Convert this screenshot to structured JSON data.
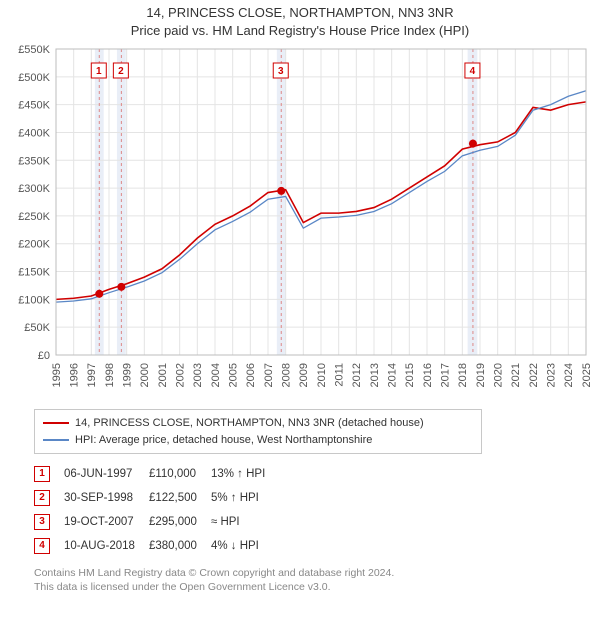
{
  "title_line1": "14, PRINCESS CLOSE, NORTHAMPTON, NN3 3NR",
  "title_line2": "Price paid vs. HM Land Registry's House Price Index (HPI)",
  "chart": {
    "type": "line",
    "x_years": [
      1995,
      1996,
      1997,
      1998,
      1999,
      2000,
      2001,
      2002,
      2003,
      2004,
      2005,
      2006,
      2007,
      2008,
      2009,
      2010,
      2011,
      2012,
      2013,
      2014,
      2015,
      2016,
      2017,
      2018,
      2019,
      2020,
      2021,
      2022,
      2023,
      2024,
      2025
    ],
    "ylim": [
      0,
      550000
    ],
    "ytick_step": 50000,
    "ytick_fmt": "£{v}K",
    "grid_color": "#e4e4e4",
    "background": "#ffffff",
    "label_fontsize": 11,
    "band_color": "#e9eef7",
    "bands": [
      [
        1997.2,
        1997.7
      ],
      [
        1998.45,
        1998.95
      ],
      [
        2007.5,
        2008.0
      ],
      [
        2018.3,
        2018.85
      ]
    ],
    "series": [
      {
        "name": "14, PRINCESS CLOSE, NORTHAMPTON, NN3 3NR (detached house)",
        "color": "#d00000",
        "width": 1.6,
        "values": [
          100,
          102,
          106,
          118,
          128,
          140,
          155,
          180,
          210,
          235,
          250,
          268,
          292,
          297,
          238,
          255,
          255,
          258,
          265,
          280,
          300,
          320,
          340,
          370,
          378,
          383,
          400,
          445,
          440,
          450,
          455
        ]
      },
      {
        "name": "HPI: Average price, detached house, West Northamptonshire",
        "color": "#5a87c6",
        "width": 1.3,
        "values": [
          95,
          97,
          101,
          112,
          122,
          133,
          148,
          172,
          200,
          225,
          240,
          257,
          280,
          285,
          228,
          246,
          248,
          251,
          258,
          272,
          292,
          312,
          330,
          358,
          368,
          375,
          395,
          440,
          450,
          465,
          475
        ]
      }
    ],
    "markers": [
      {
        "n": "1",
        "year": 1997.45,
        "value": 110
      },
      {
        "n": "2",
        "year": 1998.7,
        "value": 122.5
      },
      {
        "n": "3",
        "year": 2007.75,
        "value": 295
      },
      {
        "n": "4",
        "year": 2018.6,
        "value": 380
      }
    ],
    "marker_color": "#d00000",
    "marker_box_border": "#d00000",
    "marker_dash_color": "#d88"
  },
  "legend": {
    "line1": {
      "color": "#d00000",
      "label": "14, PRINCESS CLOSE, NORTHAMPTON, NN3 3NR (detached house)"
    },
    "line2": {
      "color": "#5a87c6",
      "label": "HPI: Average price, detached house, West Northamptonshire"
    }
  },
  "transactions": [
    {
      "n": "1",
      "date": "06-JUN-1997",
      "price": "£110,000",
      "delta": "13% ↑ HPI"
    },
    {
      "n": "2",
      "date": "30-SEP-1998",
      "price": "£122,500",
      "delta": "5% ↑ HPI"
    },
    {
      "n": "3",
      "date": "19-OCT-2007",
      "price": "£295,000",
      "delta": "≈ HPI"
    },
    {
      "n": "4",
      "date": "10-AUG-2018",
      "price": "£380,000",
      "delta": "4% ↓ HPI"
    }
  ],
  "footer_line1": "Contains HM Land Registry data © Crown copyright and database right 2024.",
  "footer_line2": "This data is licensed under the Open Government Licence v3.0."
}
